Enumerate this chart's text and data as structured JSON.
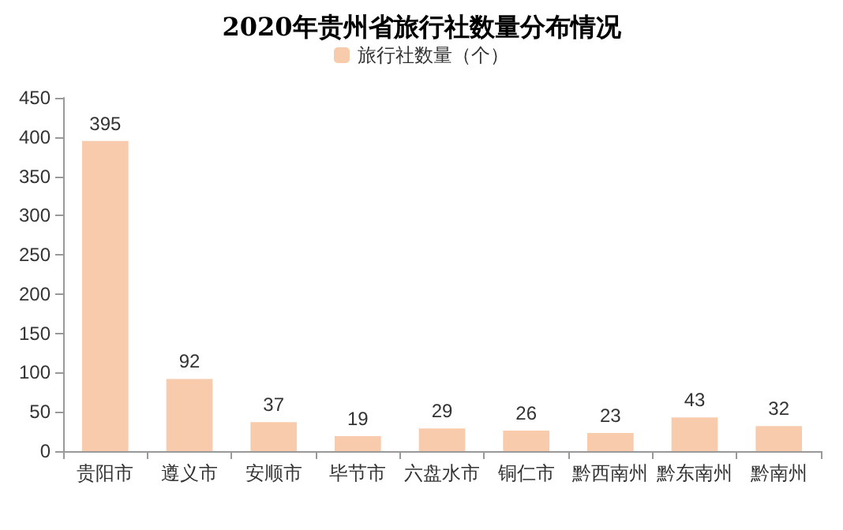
{
  "chart_data": {
    "type": "bar",
    "title": "2020年贵州省旅行社数量分布情况",
    "categories": [
      "贵阳市",
      "遵义市",
      "安顺市",
      "毕节市",
      "六盘水市",
      "铜仁市",
      "黔西南州",
      "黔东南州",
      "黔南州"
    ],
    "series": [
      {
        "name": "旅行社数量（个）",
        "color": "#f8cbad",
        "values": [
          395,
          92,
          37,
          19,
          29,
          26,
          23,
          43,
          32
        ]
      }
    ],
    "ylim": [
      0,
      450
    ],
    "yticks": [
      0,
      50,
      100,
      150,
      200,
      250,
      300,
      350,
      400,
      450
    ],
    "data_labels": true,
    "legend": "top",
    "grid": false
  }
}
